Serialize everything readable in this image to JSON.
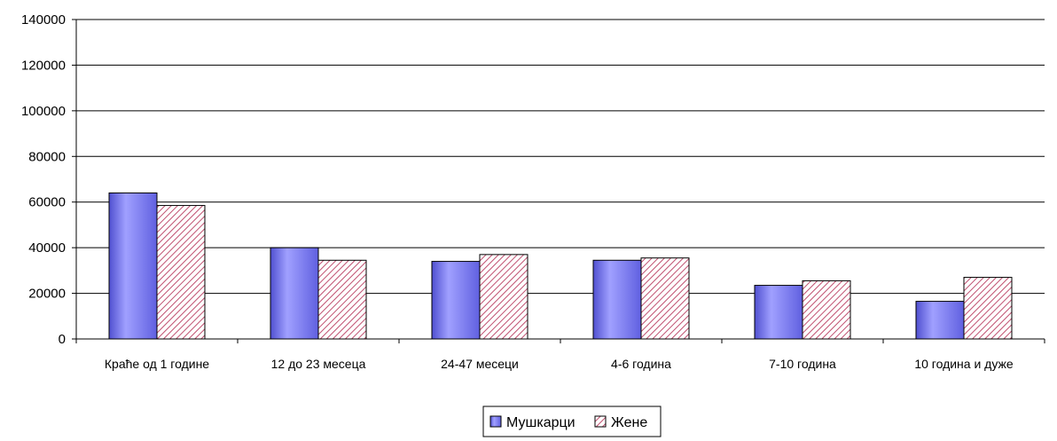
{
  "chart_data": {
    "type": "bar",
    "categories": [
      "Краће од 1 године",
      "12 до 23 месеца",
      "24-47 месеци",
      "4-6 година",
      "7-10 година",
      "10 година и дуже"
    ],
    "series": [
      {
        "name": "Мушкарци",
        "values": [
          64000,
          40000,
          34000,
          34500,
          23500,
          16500
        ],
        "color": "#8080ff",
        "pattern": "solid-gradient"
      },
      {
        "name": "Жене",
        "values": [
          58500,
          34500,
          37000,
          35500,
          25500,
          27000
        ],
        "color": "#c05070",
        "pattern": "diagonal-hatch"
      }
    ],
    "ylim": [
      0,
      140000
    ],
    "yticks": [
      "0",
      "20000",
      "40000",
      "60000",
      "80000",
      "100000",
      "120000",
      "140000"
    ],
    "grid": true,
    "legend_position": "bottom-center",
    "title": "",
    "xlabel": "",
    "ylabel": ""
  }
}
